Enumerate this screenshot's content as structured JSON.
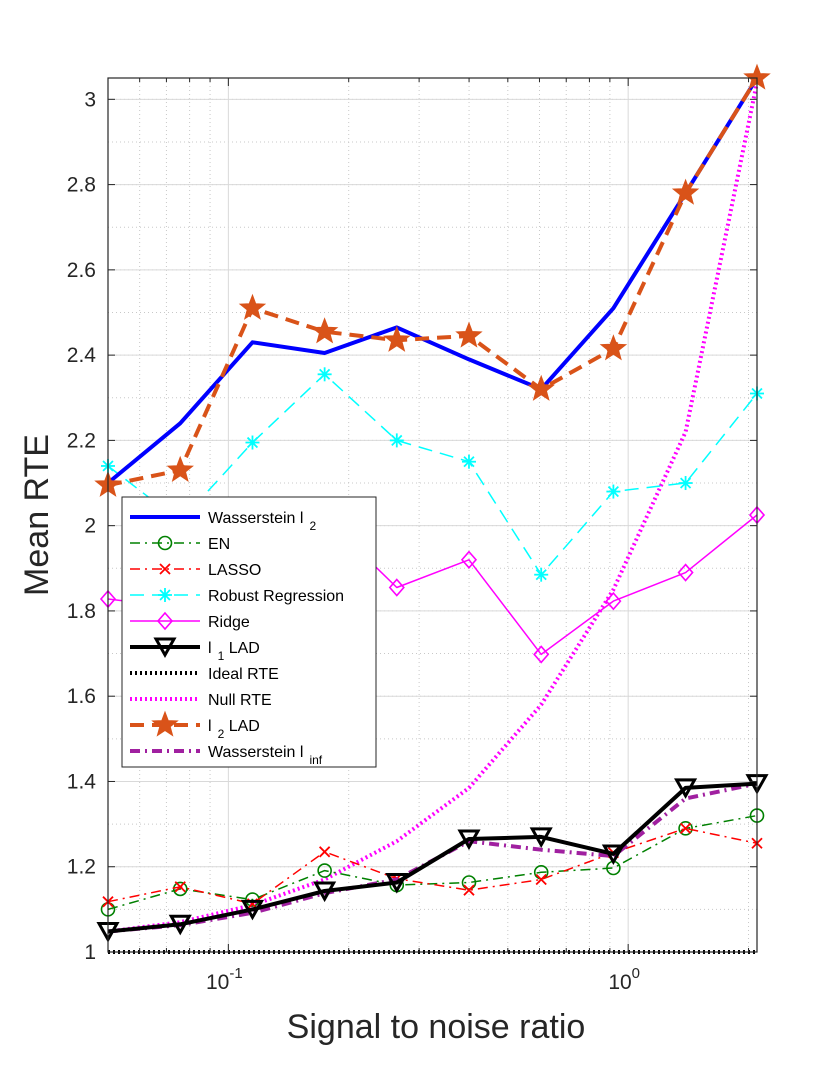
{
  "chart_data": {
    "type": "line",
    "title": "",
    "xlabel": "Signal to noise ratio",
    "ylabel": "Mean RTE",
    "xscale": "log",
    "xlim": [
      0.05,
      2.1
    ],
    "ylim": [
      1.0,
      3.05
    ],
    "yticks": [
      1,
      1.2,
      1.4,
      1.6,
      1.8,
      2,
      2.2,
      2.4,
      2.6,
      2.8,
      3
    ],
    "ytick_labels": [
      "1",
      "1.2",
      "1.4",
      "1.6",
      "1.8",
      "2",
      "2.2",
      "2.4",
      "2.6",
      "2.8",
      "3"
    ],
    "xticks": [
      {
        "value": 0.1,
        "base": "10",
        "exp": "-1"
      },
      {
        "value": 1,
        "base": "10",
        "exp": "0"
      }
    ],
    "grid": true,
    "legend_position": "lower-left",
    "x": [
      0.05,
      0.0758,
      0.1149,
      0.1741,
      0.2638,
      0.3998,
      0.606,
      0.9184,
      1.3918,
      2.1
    ],
    "series": [
      {
        "name": "Wasserstein l",
        "sub": "2",
        "color": "#0000ff",
        "style": "solid",
        "width": 4,
        "marker": "none",
        "values": [
          2.1,
          2.24,
          2.43,
          2.405,
          2.465,
          2.39,
          2.32,
          2.51,
          2.78,
          3.05
        ]
      },
      {
        "name": "EN",
        "sub": "",
        "color": "#008000",
        "style": "dashdot",
        "width": 1.5,
        "marker": "circle",
        "values": [
          1.1,
          1.148,
          1.123,
          1.191,
          1.157,
          1.163,
          1.187,
          1.197,
          1.29,
          1.32
        ]
      },
      {
        "name": "LASSO",
        "sub": "",
        "color": "#ff0000",
        "style": "dashdot",
        "width": 1.5,
        "marker": "x",
        "values": [
          1.118,
          1.153,
          1.113,
          1.235,
          1.172,
          1.145,
          1.17,
          1.233,
          1.29,
          1.255
        ]
      },
      {
        "name": "Robust Regression",
        "sub": "",
        "color": "#00ffff",
        "style": "dashed",
        "width": 1.5,
        "marker": "star",
        "values": [
          2.14,
          2.01,
          2.195,
          2.355,
          2.2,
          2.15,
          1.885,
          2.08,
          2.1,
          2.31
        ]
      },
      {
        "name": "Ridge",
        "sub": "",
        "color": "#ff00ff",
        "style": "solid",
        "width": 1.5,
        "marker": "diamond",
        "values": [
          1.828,
          1.808,
          1.822,
          2.02,
          1.855,
          1.92,
          1.698,
          1.823,
          1.89,
          2.025
        ]
      },
      {
        "name": "l",
        "sub": "1",
        "suffix": " LAD",
        "color": "#000000",
        "style": "solid",
        "width": 4,
        "marker": "triangle-down",
        "values": [
          1.048,
          1.065,
          1.1,
          1.143,
          1.163,
          1.265,
          1.27,
          1.23,
          1.385,
          1.395
        ]
      },
      {
        "name": "Ideal RTE",
        "sub": "",
        "color": "#000000",
        "style": "dotted",
        "width": 4,
        "marker": "none",
        "values": [
          1,
          1,
          1,
          1,
          1,
          1,
          1,
          1,
          1,
          1
        ]
      },
      {
        "name": "Null RTE",
        "sub": "",
        "color": "#ff00ff",
        "style": "dotted",
        "width": 4,
        "marker": "none",
        "values": [
          1.048,
          1.07,
          1.11,
          1.17,
          1.26,
          1.385,
          1.58,
          1.85,
          2.22,
          3.04
        ]
      },
      {
        "name": "l",
        "sub": "2",
        "suffix": " LAD",
        "color": "#d95319",
        "style": "dashed",
        "width": 4,
        "marker": "pentagram",
        "values": [
          2.095,
          2.13,
          2.51,
          2.455,
          2.435,
          2.445,
          2.32,
          2.415,
          2.78,
          3.05
        ]
      },
      {
        "name": "Wasserstein l",
        "sub": "inf",
        "color": "#a020a0",
        "style": "dashdot",
        "width": 4,
        "marker": "none",
        "values": [
          1.048,
          1.063,
          1.092,
          1.138,
          1.17,
          1.26,
          1.24,
          1.225,
          1.36,
          1.395
        ]
      }
    ]
  }
}
